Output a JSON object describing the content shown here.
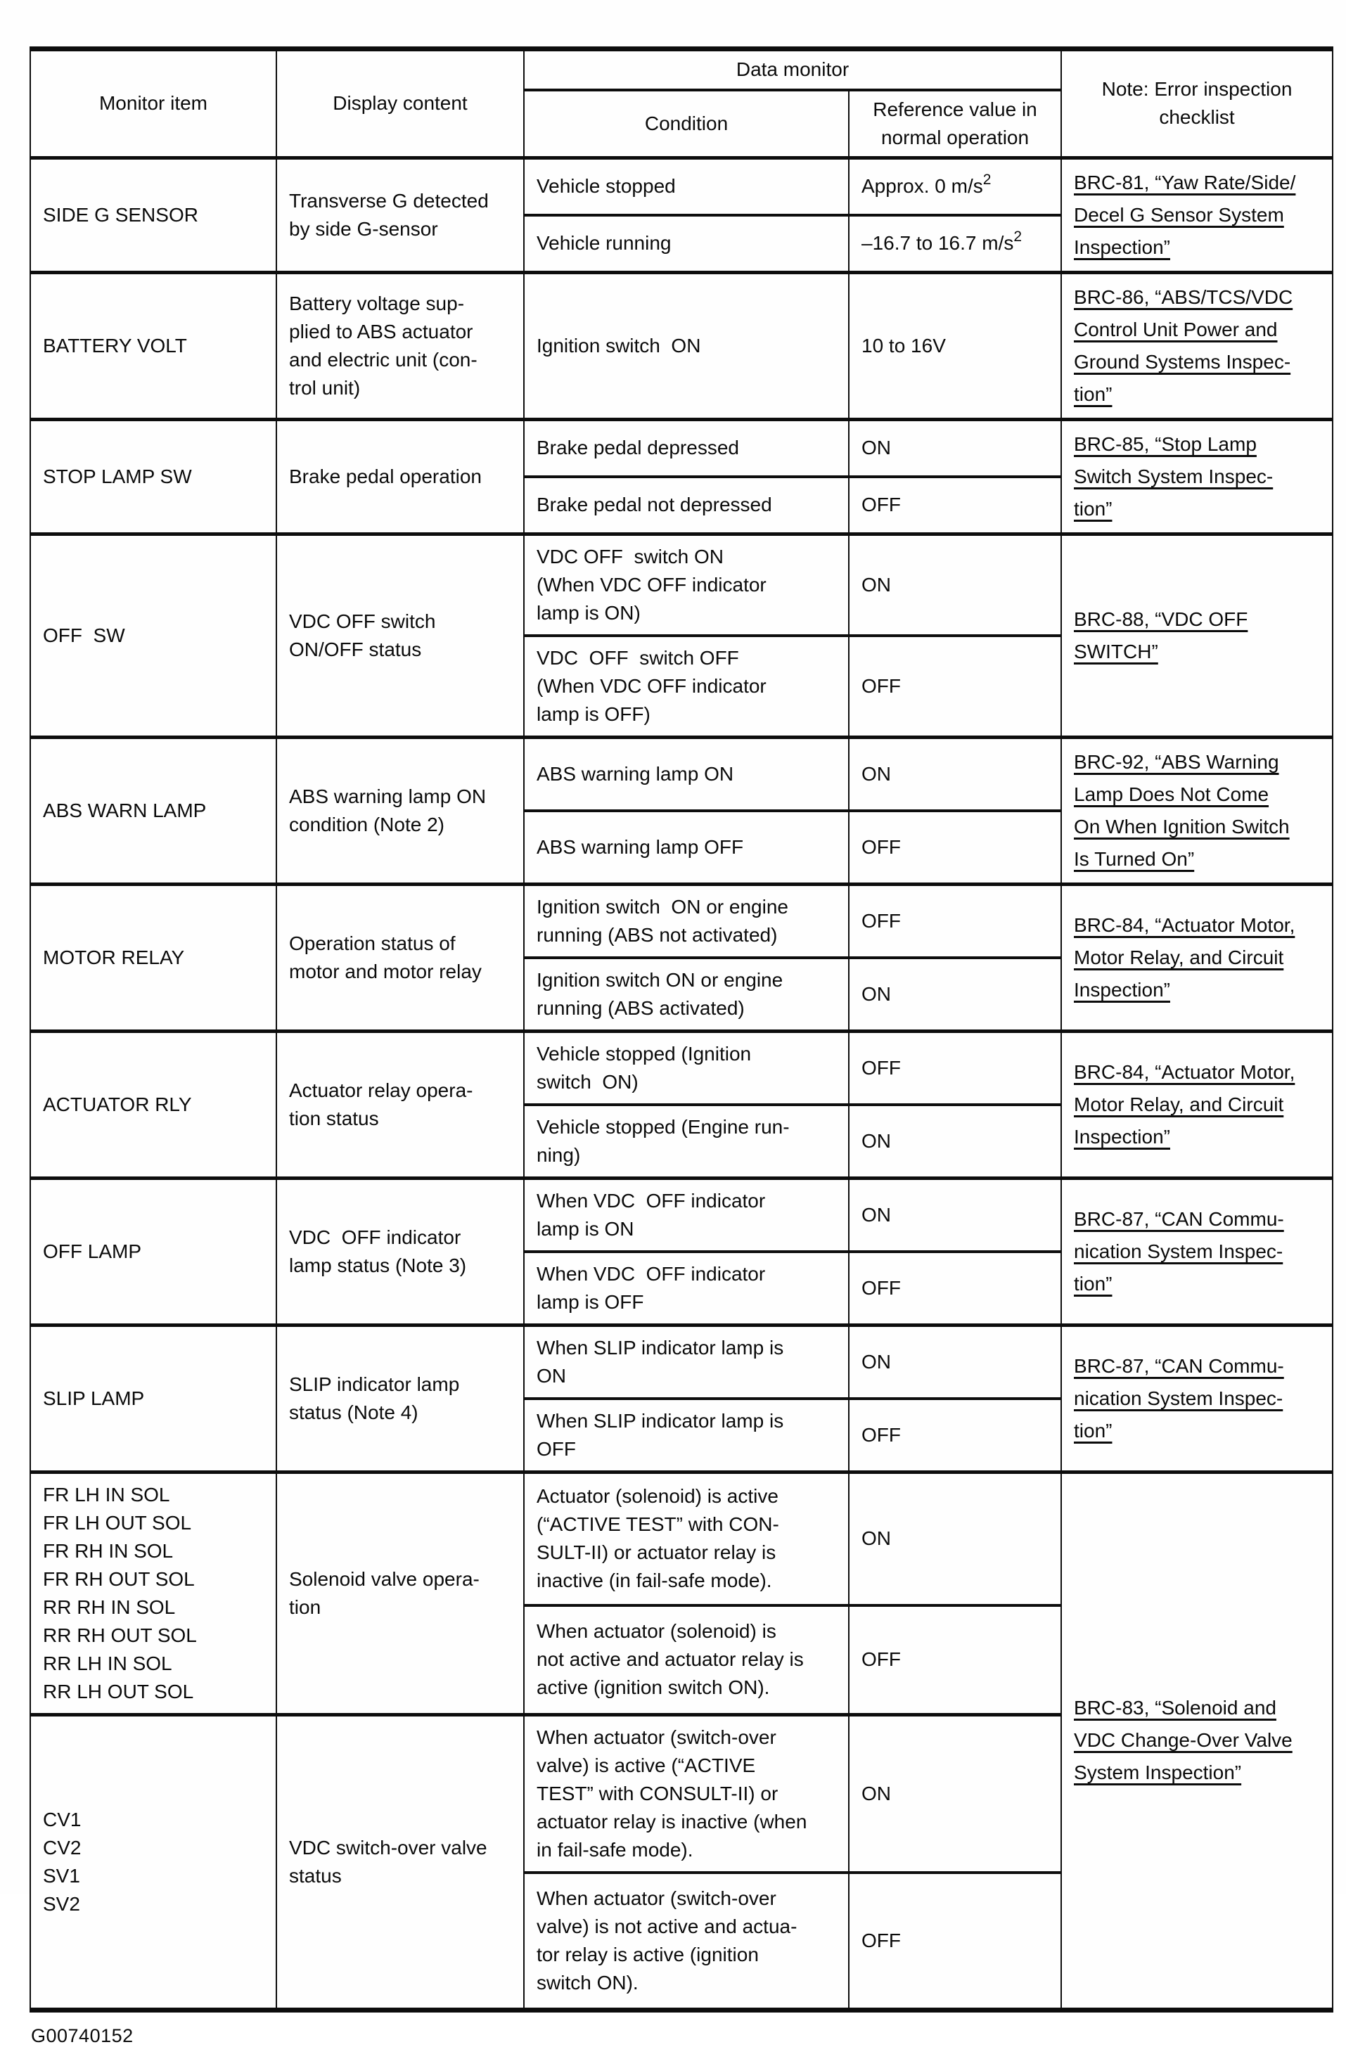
{
  "page": {
    "figure_id": "G00740152"
  },
  "table": {
    "header": {
      "monitor_item": "Monitor item",
      "display_content": "Display content",
      "data_monitor": "Data monitor",
      "condition": "Condition",
      "reference": "Reference value in\nnormal operation",
      "note": "Note: Error inspection\nchecklist"
    },
    "rows": [
      {
        "item": "SIDE G SENSOR",
        "display": "Transverse G detected\nby side G-sensor",
        "conditions": [
          {
            "condition": "Vehicle stopped",
            "reference": "Approx. 0 m/s",
            "reference_sup": "2"
          },
          {
            "condition": "Vehicle running",
            "reference": "–16.7 to 16.7 m/s",
            "reference_sup": "2"
          }
        ],
        "note": "BRC-81, “Yaw Rate/Side/\nDecel G Sensor System\nInspection”"
      },
      {
        "item": "BATTERY VOLT",
        "display": "Battery voltage sup-\nplied to ABS actuator\nand electric unit (con-\ntrol unit)",
        "conditions": [
          {
            "condition": "Ignition switch  ON",
            "reference": "10 to 16V"
          }
        ],
        "note": "BRC-86, “ABS/TCS/VDC\nControl Unit Power and\nGround Systems Inspec-\ntion”"
      },
      {
        "item": "STOP LAMP SW",
        "display": "Brake pedal operation",
        "conditions": [
          {
            "condition": "Brake pedal depressed",
            "reference": "ON"
          },
          {
            "condition": "Brake pedal not depressed",
            "reference": "OFF"
          }
        ],
        "note": "BRC-85, “Stop Lamp\nSwitch System Inspec-\ntion”"
      },
      {
        "item": "OFF  SW",
        "display": "VDC OFF switch\nON/OFF status",
        "conditions": [
          {
            "condition": "VDC OFF  switch ON\n(When VDC OFF indicator\nlamp is ON)",
            "reference": "ON"
          },
          {
            "condition": "VDC  OFF  switch OFF\n(When VDC OFF indicator\nlamp is OFF)",
            "reference": "OFF"
          }
        ],
        "note": "BRC-88, “VDC OFF\nSWITCH”"
      },
      {
        "item": "ABS WARN LAMP",
        "display": "ABS warning lamp ON\ncondition (Note 2)",
        "conditions": [
          {
            "condition": "ABS warning lamp ON",
            "reference": "ON"
          },
          {
            "condition": "ABS warning lamp OFF",
            "reference": "OFF"
          }
        ],
        "note": "BRC-92, “ABS Warning\nLamp Does Not Come\nOn When Ignition Switch\nIs Turned On”"
      },
      {
        "item": "MOTOR RELAY",
        "display": "Operation status of\nmotor and motor relay",
        "conditions": [
          {
            "condition": "Ignition switch  ON or engine\nrunning (ABS not activated)",
            "reference": "OFF"
          },
          {
            "condition": "Ignition switch ON or engine\nrunning (ABS activated)",
            "reference": "ON"
          }
        ],
        "note": "BRC-84, “Actuator Motor,\nMotor Relay, and Circuit\nInspection”"
      },
      {
        "item": "ACTUATOR RLY",
        "display": "Actuator relay opera-\ntion status",
        "conditions": [
          {
            "condition": "Vehicle stopped (Ignition\nswitch  ON)",
            "reference": "OFF"
          },
          {
            "condition": "Vehicle stopped (Engine run-\nning)",
            "reference": "ON"
          }
        ],
        "note": "BRC-84, “Actuator Motor,\nMotor Relay, and Circuit\nInspection”"
      },
      {
        "item": "OFF LAMP",
        "display": "VDC  OFF indicator\nlamp status (Note 3)",
        "conditions": [
          {
            "condition": "When VDC  OFF indicator\nlamp is ON",
            "reference": "ON"
          },
          {
            "condition": "When VDC  OFF indicator\nlamp is OFF",
            "reference": "OFF"
          }
        ],
        "note": "BRC-87, “CAN Commu-\nnication System Inspec-\ntion”"
      },
      {
        "item": "SLIP LAMP",
        "display": "SLIP indicator lamp\nstatus (Note 4)",
        "conditions": [
          {
            "condition": "When SLIP indicator lamp is\nON",
            "reference": "ON"
          },
          {
            "condition": "When SLIP indicator lamp is\nOFF",
            "reference": "OFF"
          }
        ],
        "note": "BRC-87, “CAN Commu-\nnication System Inspec-\ntion”"
      },
      {
        "item": "FR LH IN SOL\nFR LH OUT SOL\nFR RH IN SOL\nFR RH OUT SOL\nRR RH IN SOL\nRR RH OUT SOL\nRR LH IN SOL\nRR LH OUT SOL",
        "display": "Solenoid valve opera-\ntion",
        "conditions": [
          {
            "condition": "Actuator (solenoid) is active\n(“ACTIVE TEST” with CON-\nSULT-II) or actuator relay is\ninactive (in fail-safe mode).",
            "reference": "ON"
          },
          {
            "condition": "When actuator (solenoid) is\nnot active and actuator relay is\nactive (ignition switch ON).",
            "reference": "OFF"
          }
        ],
        "note": "BRC-83, “Solenoid and\nVDC Change-Over Valve\nSystem Inspection”"
      },
      {
        "item": "CV1\nCV2\nSV1\nSV2",
        "display": "VDC switch-over valve\nstatus",
        "conditions": [
          {
            "condition": "When actuator (switch-over\nvalve) is active (“ACTIVE\nTEST” with CONSULT-II) or\nactuator relay is inactive (when\nin fail-safe mode).",
            "reference": "ON"
          },
          {
            "condition": "When actuator (switch-over\nvalve) is not active and actua-\ntor relay is active (ignition\nswitch ON).",
            "reference": "OFF"
          }
        ]
      }
    ]
  }
}
